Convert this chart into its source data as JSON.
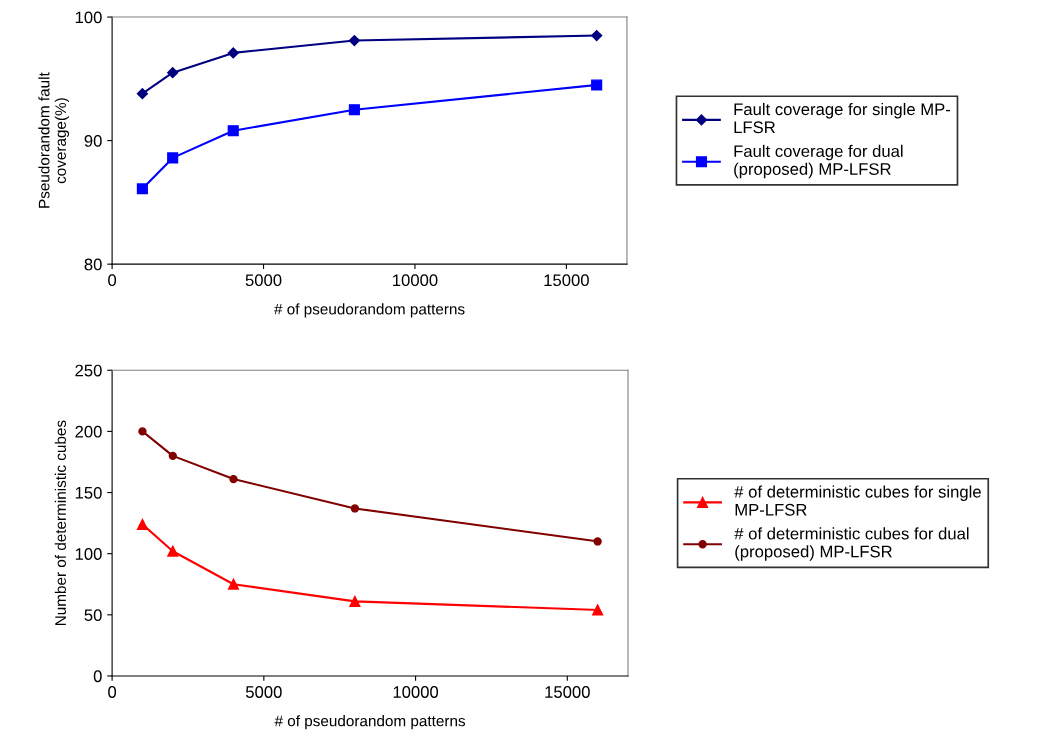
{
  "chart_data": [
    {
      "type": "line",
      "ylabel": "Pseudorandom fault\ncoverage(%)",
      "xlabel": "# of pseudorandom patterns",
      "x": [
        1000,
        2000,
        4000,
        8000,
        16000
      ],
      "xlim": [
        0,
        17000
      ],
      "xticks": [
        0,
        5000,
        10000,
        15000
      ],
      "ylim": [
        80,
        100
      ],
      "yticks": [
        80,
        90,
        100
      ],
      "grid": false,
      "legend": "right",
      "series": [
        {
          "name": "Fault coverage for single MP-\nLFSR",
          "color": "#000080",
          "marker": "diamond",
          "values": [
            93.8,
            95.5,
            97.1,
            98.1,
            98.5
          ]
        },
        {
          "name": "Fault coverage for dual\n(proposed) MP-LFSR",
          "color": "#0000ff",
          "marker": "square",
          "values": [
            86.1,
            88.6,
            90.8,
            92.5,
            94.5
          ]
        }
      ]
    },
    {
      "type": "line",
      "ylabel": "Number of deterministic cubes",
      "xlabel": "# of pseudorandom patterns",
      "x": [
        1000,
        2000,
        4000,
        8000,
        16000
      ],
      "xlim": [
        0,
        17000
      ],
      "xticks": [
        0,
        5000,
        10000,
        15000
      ],
      "ylim": [
        0,
        250
      ],
      "yticks": [
        0,
        50,
        100,
        150,
        200,
        250
      ],
      "grid": false,
      "legend": "right",
      "series": [
        {
          "name": "# of deterministic cubes for single\nMP-LFSR",
          "color": "#ff0000",
          "marker": "triangle",
          "values": [
            124,
            102,
            75,
            61,
            54
          ]
        },
        {
          "name": "# of deterministic cubes for dual\n(proposed) MP-LFSR",
          "color": "#800000",
          "marker": "circle",
          "values": [
            200,
            180,
            161,
            137,
            110
          ]
        }
      ]
    }
  ]
}
